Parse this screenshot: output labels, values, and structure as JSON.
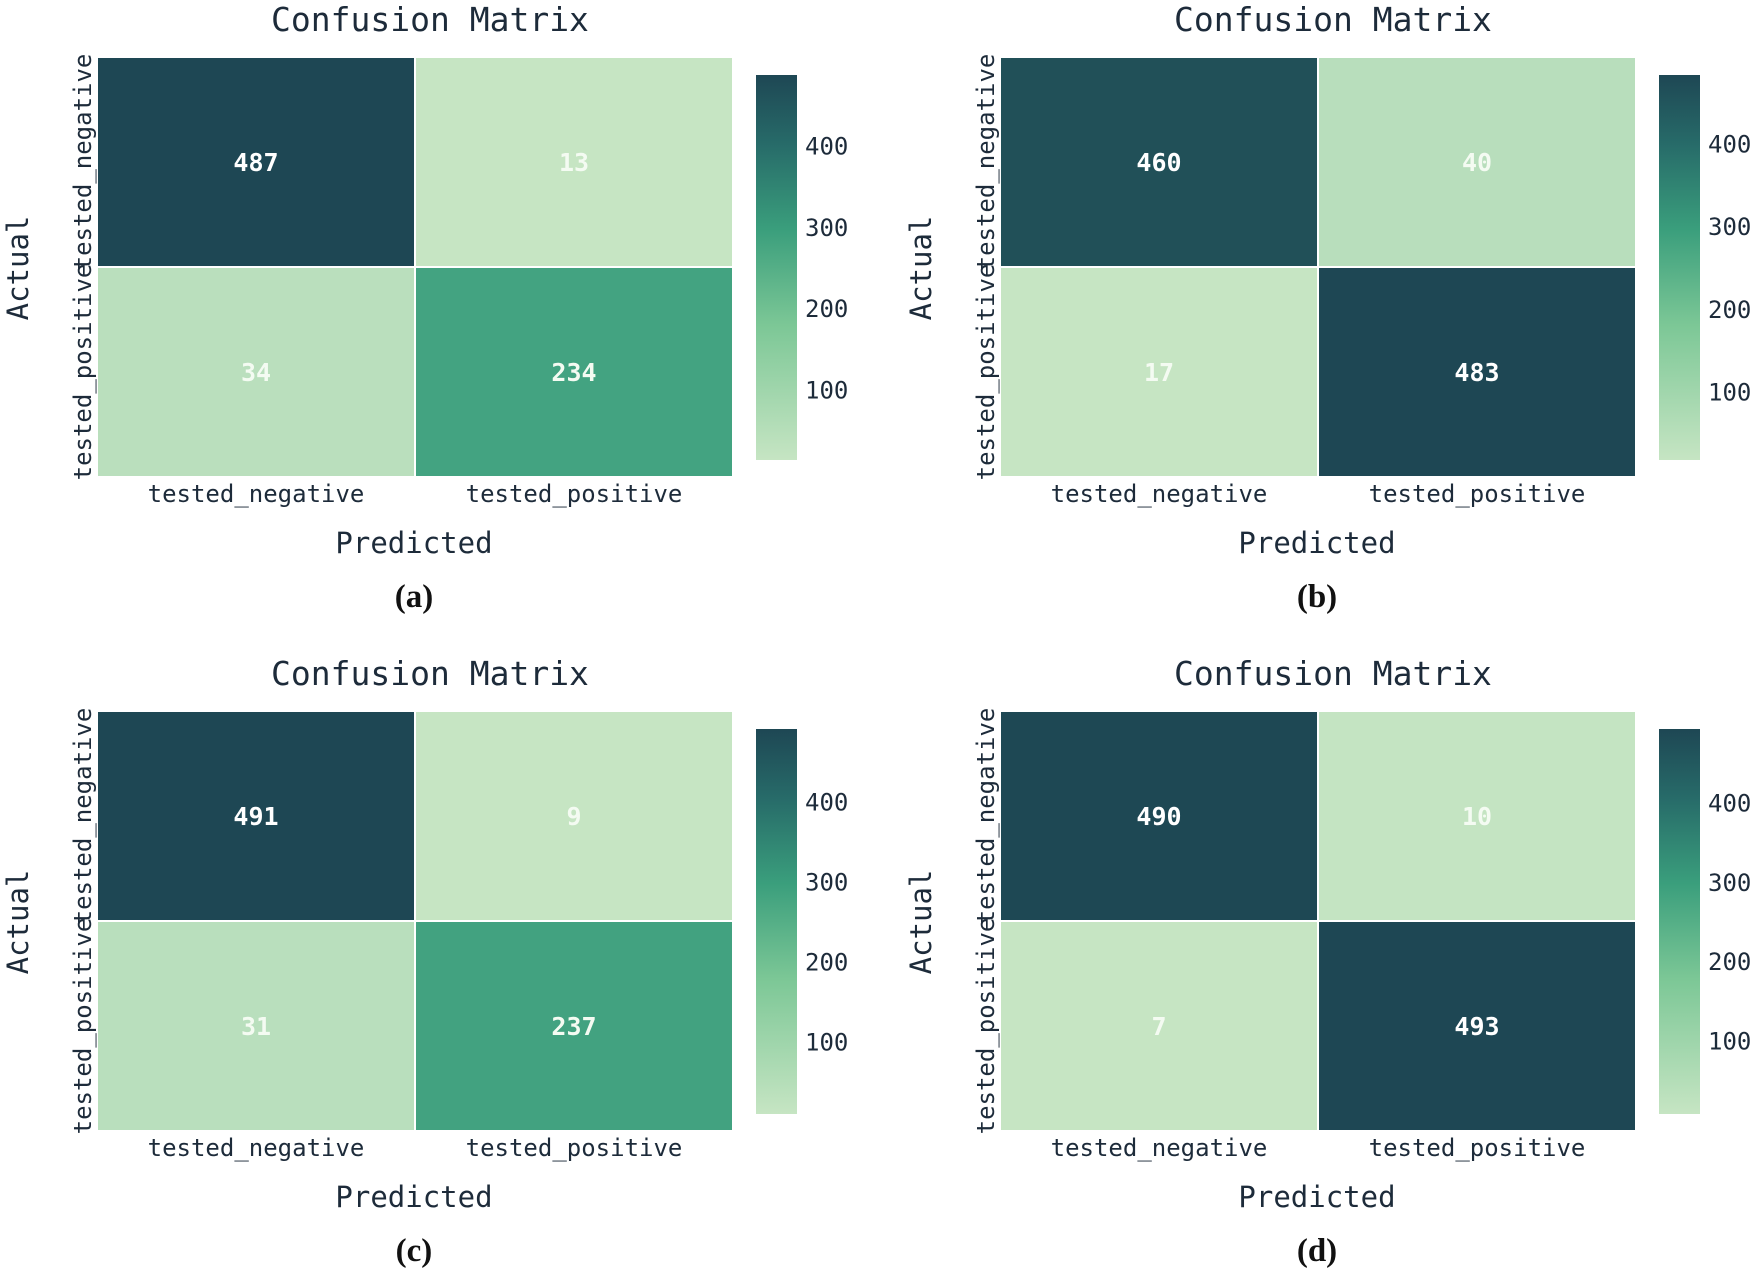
{
  "figure": {
    "panels": [
      {
        "subcaption": "(a)",
        "title": "Confusion Matrix",
        "xlabel": "Predicted",
        "ylabel": "Actual",
        "x_tick_labels": [
          "tested_negative",
          "tested_positive"
        ],
        "y_tick_labels": [
          "tested_negative",
          "tested_positive"
        ],
        "colorbar_ticks": [
          "100",
          "200",
          "300",
          "400"
        ]
      },
      {
        "subcaption": "(b)",
        "title": "Confusion Matrix",
        "xlabel": "Predicted",
        "ylabel": "Actual",
        "x_tick_labels": [
          "tested_negative",
          "tested_positive"
        ],
        "y_tick_labels": [
          "tested_negative",
          "tested_positive"
        ],
        "colorbar_ticks": [
          "100",
          "200",
          "300",
          "400"
        ]
      },
      {
        "subcaption": "(c)",
        "title": "Confusion Matrix",
        "xlabel": "Predicted",
        "ylabel": "Actual",
        "x_tick_labels": [
          "tested_negative",
          "tested_positive"
        ],
        "y_tick_labels": [
          "tested_negative",
          "tested_positive"
        ],
        "colorbar_ticks": [
          "100",
          "200",
          "300",
          "400"
        ]
      },
      {
        "subcaption": "(d)",
        "title": "Confusion Matrix",
        "xlabel": "Predicted",
        "ylabel": "Actual",
        "x_tick_labels": [
          "tested_negative",
          "tested_positive"
        ],
        "y_tick_labels": [
          "tested_negative",
          "tested_positive"
        ],
        "colorbar_ticks": [
          "100",
          "200",
          "300",
          "400"
        ]
      }
    ]
  },
  "chart_data": [
    {
      "type": "heatmap",
      "title": "Confusion Matrix",
      "subcaption": "(a)",
      "xlabel": "Predicted",
      "ylabel": "Actual",
      "x_categories": [
        "tested_negative",
        "tested_positive"
      ],
      "y_categories": [
        "tested_negative",
        "tested_positive"
      ],
      "values": [
        [
          487,
          13
        ],
        [
          34,
          234
        ]
      ],
      "colorbar": {
        "ticks": [
          100,
          200,
          300,
          400
        ],
        "min": 13,
        "max": 487,
        "low_color": "#c6e5c3",
        "mid_color": "#3a9e7c",
        "high_color": "#1e4754"
      }
    },
    {
      "type": "heatmap",
      "title": "Confusion Matrix",
      "subcaption": "(b)",
      "xlabel": "Predicted",
      "ylabel": "Actual",
      "x_categories": [
        "tested_negative",
        "tested_positive"
      ],
      "y_categories": [
        "tested_negative",
        "tested_positive"
      ],
      "values": [
        [
          460,
          40
        ],
        [
          17,
          483
        ]
      ],
      "colorbar": {
        "ticks": [
          100,
          200,
          300,
          400
        ],
        "min": 17,
        "max": 483,
        "low_color": "#c6e5c3",
        "mid_color": "#3a9e7c",
        "high_color": "#1e4754"
      }
    },
    {
      "type": "heatmap",
      "title": "Confusion Matrix",
      "subcaption": "(c)",
      "xlabel": "Predicted",
      "ylabel": "Actual",
      "x_categories": [
        "tested_negative",
        "tested_positive"
      ],
      "y_categories": [
        "tested_negative",
        "tested_positive"
      ],
      "values": [
        [
          491,
          9
        ],
        [
          31,
          237
        ]
      ],
      "colorbar": {
        "ticks": [
          100,
          200,
          300,
          400
        ],
        "min": 9,
        "max": 491,
        "low_color": "#c6e5c3",
        "mid_color": "#3a9e7c",
        "high_color": "#1e4754"
      }
    },
    {
      "type": "heatmap",
      "title": "Confusion Matrix",
      "subcaption": "(d)",
      "xlabel": "Predicted",
      "ylabel": "Actual",
      "x_categories": [
        "tested_negative",
        "tested_positive"
      ],
      "y_categories": [
        "tested_negative",
        "tested_positive"
      ],
      "values": [
        [
          490,
          10
        ],
        [
          7,
          493
        ]
      ],
      "colorbar": {
        "ticks": [
          100,
          200,
          300,
          400
        ],
        "min": 7,
        "max": 493,
        "low_color": "#c6e5c3",
        "mid_color": "#3a9e7c",
        "high_color": "#1e4754"
      }
    }
  ]
}
